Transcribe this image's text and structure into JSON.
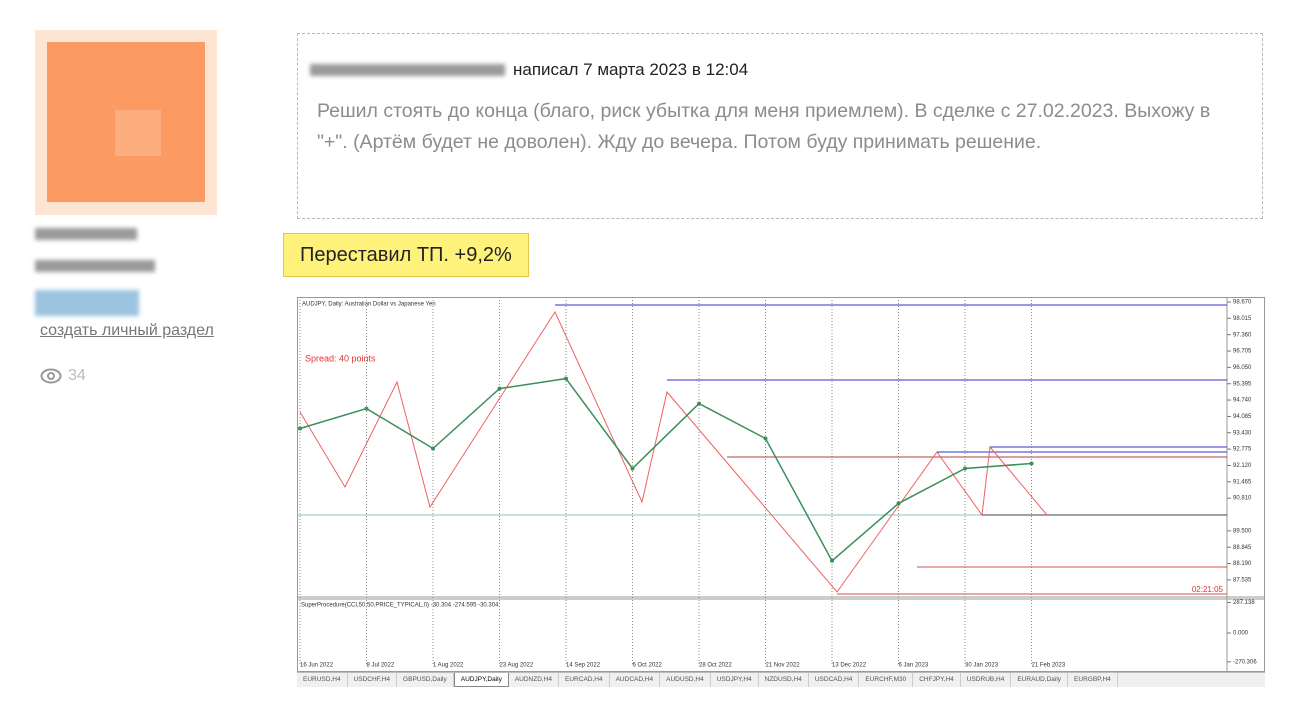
{
  "sidebar": {
    "link": "создать личный раздел",
    "views": "34"
  },
  "quote": {
    "meta": "написал 7 марта 2023 в 12:04",
    "text": "Решил стоять до конца (благо, риск убытка для меня приемлем). В сделке с 27.02.2023. Выхожу в \"+\". (Артём будет не доволен). Жду до вечера. Потом буду принимать решение."
  },
  "message": "Переставил ТП. +9,2%",
  "chart_data": {
    "type": "line",
    "title": "AUDJPY, Daily:  Australian Dollar vs Japanese Yen",
    "annotation": "Spread: 40 points",
    "timer": "02:21:05",
    "categories": [
      "16 Jun 2022",
      "8 Jul 2022",
      "1 Aug 2022",
      "23 Aug 2022",
      "14 Sep 2022",
      "6 Oct 2022",
      "28 Oct 2022",
      "21 Nov 2022",
      "13 Dec 2022",
      "6 Jan 2023",
      "30 Jan 2023",
      "21 Feb 2023"
    ],
    "series": [
      {
        "name": "AUDJPY",
        "color": "#3a8f5a",
        "values": [
          93.6,
          94.4,
          92.8,
          95.2,
          95.6,
          92.0,
          94.6,
          93.2,
          88.3,
          90.6,
          92.0,
          92.2
        ]
      }
    ],
    "ylim": [
      86.85,
      98.87
    ],
    "yticks": [
      {
        "value": 98.67,
        "label": "98.670"
      },
      98.015,
      {
        "value": 97.36,
        "label": "97.360"
      },
      96.705,
      {
        "value": 96.05,
        "label": "96.050"
      },
      95.395,
      {
        "value": 94.74,
        "label": "94.740"
      },
      94.085,
      {
        "value": 93.43,
        "label": "93.430"
      },
      92.775,
      {
        "value": 92.12,
        "label": "92.120"
      },
      91.465,
      {
        "value": 90.81,
        "label": "90.810"
      },
      {
        "value": 89.5,
        "label": "89.500"
      },
      88.845,
      {
        "value": 88.19,
        "label": "88.190"
      },
      87.535
    ],
    "indicator": {
      "label": "SuperProcedure(CCI,50,50,PRICE_TYPICAL,0) -30.304 -274.595 -30.304",
      "ylim": [
        -300,
        310
      ],
      "yticks": [
        287.138,
        {
          "value": 0,
          "label": "0.000"
        },
        -270.306
      ]
    },
    "tabs": [
      "EURUSD,H4",
      "USDCHF,H4",
      "GBPUSD,Daily",
      "AUDJPY,Daily",
      "AUDNZD,H4",
      "EURCAD,H4",
      "AUDCAD,H4",
      "AUDUSD,H4",
      "USDJPY,H4",
      "NZDUSD,H4",
      "USDCAD,H4",
      "EURCHF,M30",
      "CHFJPY,H4",
      "USDRUB,H4",
      "EURAUD,Daily",
      "EURGBP,H4"
    ],
    "active_tab": 3
  }
}
